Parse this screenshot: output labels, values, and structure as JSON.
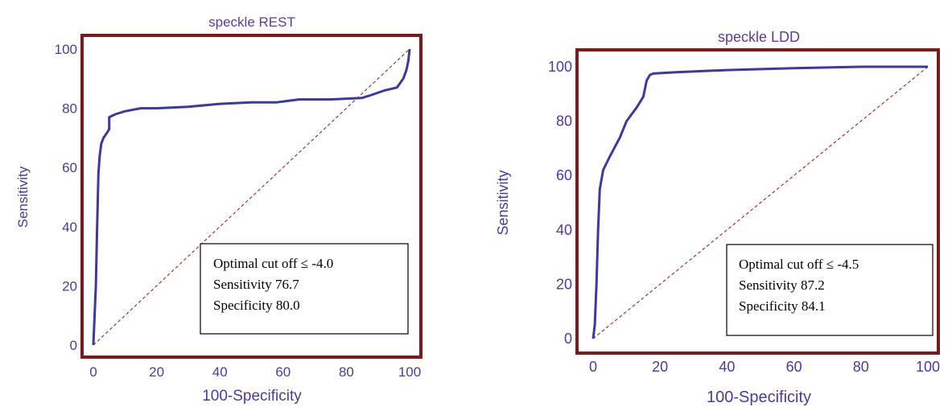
{
  "chart_data": [
    {
      "type": "line",
      "title": "speckle REST",
      "xlabel": "100-Specificity",
      "ylabel": "Sensitivity",
      "xlim": [
        0,
        100
      ],
      "ylim": [
        0,
        100
      ],
      "xticks": [
        "0",
        "20",
        "40",
        "60",
        "80",
        "100"
      ],
      "yticks": [
        "0",
        "20",
        "40",
        "60",
        "80",
        "100"
      ],
      "grid": false,
      "series": [
        {
          "x": [
            0,
            0.8,
            1.2,
            1.6,
            2.0,
            2.5,
            3.2,
            4.5,
            5,
            5,
            7,
            10,
            15,
            20,
            30,
            40,
            50,
            58,
            65,
            75,
            85,
            88,
            92,
            96,
            98,
            99,
            99.6,
            100
          ],
          "y": [
            0,
            20,
            40,
            58,
            64,
            68,
            70,
            72,
            73,
            77,
            78,
            79,
            80,
            80,
            80.5,
            81.5,
            82,
            82,
            83,
            83,
            83.5,
            84.5,
            86,
            87,
            90,
            93,
            96,
            100
          ]
        },
        {
          "x": [
            0,
            100
          ],
          "y": [
            0,
            100
          ]
        }
      ],
      "annotations": [
        "Optimal cut off ≤ -4.0",
        "Sensitivity 76.7",
        "Specificity 80.0"
      ],
      "colors": {
        "frame": "#7a1a1a",
        "curve": "#3a3aa0",
        "diagonal": "#b03030",
        "text": "#4a3aa8"
      }
    },
    {
      "type": "line",
      "title": "speckle  LDD",
      "xlabel": "100-Specificity",
      "ylabel": "Sensitivity",
      "xlim": [
        0,
        100
      ],
      "ylim": [
        0,
        100
      ],
      "xticks": [
        "0",
        "20",
        "40",
        "60",
        "80",
        "100"
      ],
      "yticks": [
        "0",
        "20",
        "40",
        "60",
        "80",
        "100"
      ],
      "grid": false,
      "series": [
        {
          "x": [
            0,
            0.5,
            1,
            1.5,
            2,
            3,
            5,
            8,
            10,
            13,
            15,
            16,
            17,
            18,
            25,
            40,
            60,
            80,
            100
          ],
          "y": [
            0,
            5,
            20,
            40,
            55,
            62,
            67,
            74,
            80,
            85,
            89,
            95,
            97,
            97.5,
            98,
            98.8,
            99.5,
            100,
            100
          ]
        },
        {
          "x": [
            0,
            100
          ],
          "y": [
            0,
            100
          ]
        }
      ],
      "annotations": [
        "Optimal cut off ≤ -4.5",
        "Sensitivity 87.2",
        "Specificity 84.1"
      ],
      "colors": {
        "frame": "#7a1a1a",
        "curve": "#3a3aa0",
        "diagonal": "#b03030",
        "text": "#4a3aa8"
      }
    }
  ]
}
